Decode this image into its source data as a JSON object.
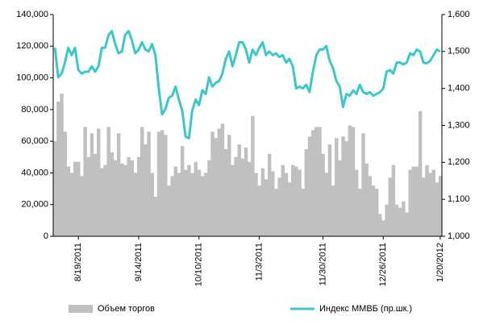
{
  "chart_data": {
    "type": "bar-line",
    "categories": [
      null,
      null,
      null,
      null,
      null,
      null,
      null,
      "8/19/2011",
      null,
      null,
      null,
      null,
      null,
      null,
      null,
      null,
      null,
      null,
      null,
      null,
      null,
      null,
      null,
      null,
      null,
      "9/14/2011",
      null,
      null,
      null,
      null,
      null,
      null,
      null,
      null,
      null,
      null,
      null,
      null,
      null,
      null,
      null,
      null,
      null,
      "10/10/2011",
      null,
      null,
      null,
      null,
      null,
      null,
      null,
      null,
      null,
      null,
      null,
      null,
      null,
      null,
      null,
      null,
      null,
      "11/3/2011",
      null,
      null,
      null,
      null,
      null,
      null,
      null,
      null,
      null,
      null,
      null,
      null,
      null,
      null,
      null,
      null,
      null,
      null,
      "11/30/2011",
      null,
      null,
      null,
      null,
      null,
      null,
      null,
      null,
      null,
      null,
      null,
      null,
      null,
      null,
      null,
      null,
      null,
      "12/26/2011",
      null,
      null,
      null,
      null,
      null,
      null,
      null,
      null,
      null,
      null,
      null,
      null,
      null,
      null,
      null,
      null,
      "1/20/2012"
    ],
    "series": [
      {
        "name": "Объем торгов",
        "color": "#c0c0c0",
        "kind": "bar",
        "values": [
          60000,
          85000,
          90000,
          66000,
          44000,
          40000,
          47000,
          47000,
          38000,
          69000,
          50000,
          65000,
          52000,
          68000,
          43000,
          45000,
          69000,
          53000,
          48000,
          65000,
          46000,
          45000,
          50000,
          48000,
          40000,
          50000,
          69000,
          58000,
          66000,
          40000,
          25000,
          66000,
          67000,
          64000,
          32000,
          38000,
          44000,
          40000,
          57000,
          42000,
          45000,
          40000,
          47000,
          42000,
          38000,
          40000,
          48000,
          66000,
          62000,
          68000,
          71000,
          55000,
          64000,
          45000,
          50000,
          58000,
          49000,
          56000,
          47000,
          76000,
          40000,
          32000,
          43000,
          36000,
          52000,
          41000,
          30000,
          37000,
          45000,
          40000,
          34000,
          45000,
          44000,
          42000,
          30000,
          55000,
          63000,
          67000,
          69000,
          69000,
          52000,
          40000,
          58000,
          32000,
          62000,
          48000,
          63000,
          60000,
          70000,
          69000,
          42000,
          30000,
          65000,
          46000,
          38000,
          32000,
          30000,
          14000,
          10000,
          20000,
          37000,
          45000,
          20000,
          18000,
          22000,
          15000,
          42000,
          44000,
          44000,
          79000,
          37000,
          45000,
          40000,
          42000,
          34000,
          38000
        ]
      },
      {
        "name": "Индекс ММВБ (пр.шк.)",
        "color": "#3cc8c8",
        "kind": "line",
        "axis": "y2",
        "values": [
          1510,
          1430,
          1440,
          1470,
          1510,
          1490,
          1510,
          1450,
          1440,
          1445,
          1445,
          1460,
          1445,
          1460,
          1510,
          1510,
          1545,
          1555,
          1520,
          1495,
          1500,
          1545,
          1555,
          1530,
          1495,
          1505,
          1525,
          1505,
          1500,
          1520,
          1490,
          1400,
          1330,
          1345,
          1375,
          1380,
          1405,
          1370,
          1340,
          1270,
          1265,
          1340,
          1370,
          1355,
          1395,
          1385,
          1430,
          1405,
          1415,
          1420,
          1440,
          1480,
          1500,
          1460,
          1490,
          1525,
          1525,
          1505,
          1470,
          1505,
          1490,
          1510,
          1525,
          1490,
          1500,
          1490,
          1495,
          1485,
          1490,
          1470,
          1480,
          1460,
          1400,
          1405,
          1400,
          1410,
          1390,
          1445,
          1490,
          1505,
          1505,
          1515,
          1475,
          1455,
          1420,
          1405,
          1350,
          1385,
          1380,
          1395,
          1385,
          1410,
          1390,
          1385,
          1390,
          1380,
          1385,
          1390,
          1400,
          1445,
          1450,
          1440,
          1470,
          1470,
          1465,
          1470,
          1495,
          1490,
          1505,
          1500,
          1470,
          1468,
          1475,
          1490,
          1505,
          1500
        ]
      }
    ],
    "ylim": [
      0,
      140000
    ],
    "yticks": [
      0,
      {
        "value": 20000,
        "label": "20,000"
      },
      {
        "value": 40000,
        "label": "40,000"
      },
      {
        "value": 60000,
        "label": "60,000"
      },
      {
        "value": 80000,
        "label": "80,000"
      },
      {
        "value": 100000,
        "label": "100,000"
      },
      {
        "value": 120000,
        "label": "120,000"
      },
      {
        "value": 140000,
        "label": "140,000"
      }
    ],
    "y2lim": [
      1000,
      1600
    ],
    "y2ticks": [
      {
        "value": 1000,
        "label": "1,000"
      },
      {
        "value": 1100,
        "label": "1,100"
      },
      {
        "value": 1200,
        "label": "1,200"
      },
      {
        "value": 1300,
        "label": "1,300"
      },
      {
        "value": 1400,
        "label": "1,400"
      },
      {
        "value": 1500,
        "label": "1,500"
      },
      {
        "value": 1600,
        "label": "1,600"
      }
    ],
    "legend": "bottom"
  }
}
